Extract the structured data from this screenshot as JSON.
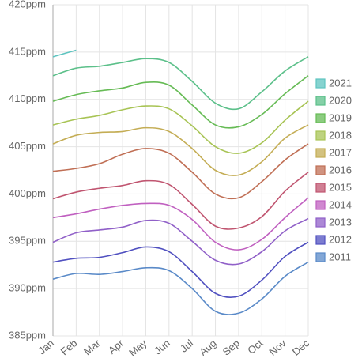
{
  "chart_data": {
    "type": "line",
    "categories": [
      "Jan",
      "Feb",
      "Mar",
      "Apr",
      "May",
      "Jun",
      "Jul",
      "Aug",
      "Sep",
      "Oct",
      "Nov",
      "Dec"
    ],
    "series": [
      {
        "name": "2021",
        "color": "#5ec4c0",
        "values": [
          414.5,
          415.2,
          null,
          null,
          null,
          null,
          null,
          null,
          null,
          null,
          null,
          null
        ]
      },
      {
        "name": "2020",
        "color": "#5cc08a",
        "values": [
          412.5,
          413.3,
          413.5,
          413.9,
          414.3,
          413.9,
          411.9,
          409.6,
          409.0,
          410.8,
          413.0,
          414.5
        ]
      },
      {
        "name": "2019",
        "color": "#66bb55",
        "values": [
          409.8,
          410.5,
          410.9,
          411.2,
          411.8,
          411.5,
          409.4,
          407.3,
          407.1,
          408.4,
          410.6,
          412.5
        ]
      },
      {
        "name": "2018",
        "color": "#a8c455",
        "values": [
          407.3,
          407.9,
          408.3,
          408.9,
          409.3,
          409.0,
          407.2,
          405.0,
          404.3,
          405.4,
          407.8,
          409.8
        ]
      },
      {
        "name": "2017",
        "color": "#c4ad55",
        "values": [
          405.3,
          406.2,
          406.5,
          406.6,
          407.0,
          406.6,
          404.8,
          402.5,
          402.0,
          403.4,
          405.9,
          407.3
        ]
      },
      {
        "name": "2016",
        "color": "#c06f55",
        "values": [
          402.4,
          402.7,
          403.2,
          404.2,
          404.8,
          404.3,
          402.3,
          400.0,
          399.6,
          401.3,
          403.6,
          405.3
        ]
      },
      {
        "name": "2015",
        "color": "#c05570",
        "values": [
          399.5,
          400.2,
          400.6,
          400.9,
          401.4,
          401.0,
          398.9,
          396.6,
          396.4,
          397.6,
          400.3,
          402.3
        ]
      },
      {
        "name": "2014",
        "color": "#c060c0",
        "values": [
          397.5,
          397.9,
          398.4,
          398.8,
          399.0,
          398.8,
          397.3,
          394.9,
          394.1,
          395.2,
          397.5,
          399.6
        ]
      },
      {
        "name": "2013",
        "color": "#9060c8",
        "values": [
          394.9,
          395.9,
          396.2,
          396.5,
          397.2,
          396.9,
          395.0,
          393.0,
          392.6,
          393.9,
          396.1,
          397.4
        ]
      },
      {
        "name": "2012",
        "color": "#5050c0",
        "values": [
          392.8,
          393.2,
          393.3,
          393.8,
          394.4,
          393.9,
          391.8,
          389.5,
          389.2,
          390.9,
          393.4,
          394.9
        ]
      },
      {
        "name": "2011",
        "color": "#5a8ac8",
        "values": [
          391.0,
          391.6,
          391.5,
          391.8,
          392.2,
          391.9,
          390.0,
          387.6,
          387.4,
          388.9,
          391.3,
          392.8
        ]
      }
    ],
    "ylim": [
      385,
      420
    ],
    "yticks": [
      {
        "value": 385,
        "label": "385ppm"
      },
      {
        "value": 390,
        "label": "390ppm"
      },
      {
        "value": 395,
        "label": "395ppm"
      },
      {
        "value": 400,
        "label": "400ppm"
      },
      {
        "value": 405,
        "label": "405ppm"
      },
      {
        "value": 410,
        "label": "410ppm"
      },
      {
        "value": 415,
        "label": "415ppm"
      },
      {
        "value": 420,
        "label": "420ppm"
      }
    ],
    "grid": true,
    "legend": "right"
  }
}
